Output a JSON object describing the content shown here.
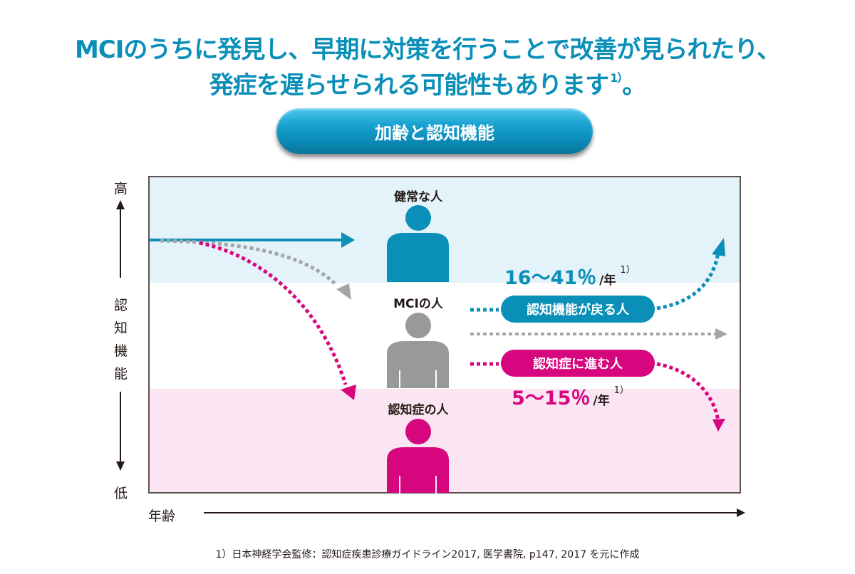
{
  "headline": {
    "line1": "MCIのうちに発見し、早期に対策を行うことで改善が見られたり、",
    "line2": "発症を遅らせられる可能性もあります",
    "line2_ref": "1）",
    "line2_end": "。"
  },
  "title_pill": "加齢と認知機能",
  "y_axis": {
    "high": "高",
    "label_chars": [
      "認",
      "知",
      "機",
      "能"
    ],
    "low": "低"
  },
  "x_axis": {
    "label": "年齢"
  },
  "people": {
    "healthy": {
      "label": "健常な人",
      "color": "#0a8fb8"
    },
    "mci": {
      "label": "MCIの人",
      "color": "#999999"
    },
    "dementia": {
      "label": "認知症の人",
      "color": "#d6067f"
    }
  },
  "outcomes": {
    "recover": {
      "label": "認知機能が戻る人",
      "rate": "16〜41％",
      "unit": "/年",
      "ref": "1）",
      "color": "#0a8fb8"
    },
    "progress": {
      "label": "認知症に進む人",
      "rate": "5〜15％",
      "unit": "/年",
      "ref": "1）",
      "color": "#d6067f"
    }
  },
  "colors": {
    "accent_blue": "#0a8fb8",
    "accent_magenta": "#d6067f",
    "gray": "#a3a6a9",
    "band_top": "#e3f3f9",
    "band_bottom": "#fbe5f2"
  },
  "footnote": "1）日本神経学会監修：認知症疾患診療ガイドライン2017, 医学書院, p147, 2017 を元に作成"
}
